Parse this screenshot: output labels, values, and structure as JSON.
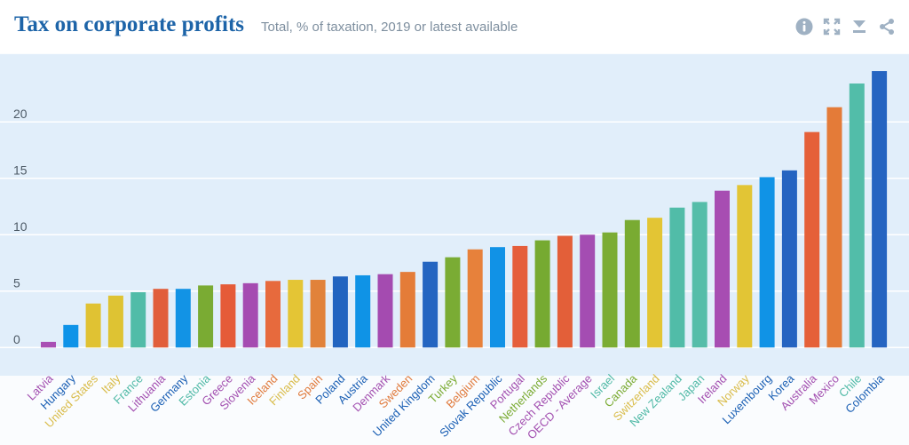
{
  "header": {
    "title": "Tax on corporate profits",
    "subtitle": "Total, % of taxation, 2019 or latest available"
  },
  "toolbar": {
    "icons": [
      "info-icon",
      "expand-icon",
      "download-icon",
      "share-icon"
    ]
  },
  "colors": {
    "plot_bg": "#e1eefa",
    "tool_icon": "#9fb1c3",
    "palette": [
      "#a94fb4",
      "#0e93e8",
      "#e0c233",
      "#dec333",
      "#51bca8",
      "#e15e3b",
      "#1293e5",
      "#7aab33",
      "#e55b38",
      "#a54bb1",
      "#e76a3d",
      "#e4c535",
      "#e1823a",
      "#2164c0",
      "#0f93e6",
      "#a44bb0",
      "#e47c38",
      "#2465c1",
      "#7aac34",
      "#e7813b",
      "#1192e6",
      "#e55e3b",
      "#76aa31",
      "#e35f39",
      "#a44db2",
      "#7bac33",
      "#79ab32",
      "#e3c534",
      "#51bca8",
      "#55bda9",
      "#a74db2",
      "#e2c535",
      "#1093e6",
      "#2564c1",
      "#e56039",
      "#e47b38",
      "#52bda9",
      "#2564c1"
    ],
    "label_colors": [
      "#a24fb0",
      "#1a5fb4",
      "#d9bc4a",
      "#d9bc4a",
      "#4fb9a6",
      "#a24fb0",
      "#1a5fb4",
      "#4fb9a6",
      "#a24fb0",
      "#a24fb0",
      "#e07a3c",
      "#d9bc4a",
      "#e07a3c",
      "#1a5fb4",
      "#1a5fb4",
      "#a24fb0",
      "#e07a3c",
      "#1a5fb4",
      "#7aab33",
      "#e07a3c",
      "#1a5fb4",
      "#a24fb0",
      "#7aab33",
      "#a24fb0",
      "#a24fb0",
      "#4fb9a6",
      "#7aab33",
      "#d9bc4a",
      "#4fb9a6",
      "#4fb9a6",
      "#a24fb0",
      "#d9bc4a",
      "#1a5fb4",
      "#1a5fb4",
      "#a24fb0",
      "#a24fb0",
      "#4fb9a6",
      "#1a5fb4"
    ]
  },
  "chart_data": {
    "type": "bar",
    "title": "Tax on corporate profits",
    "subtitle": "Total, % of taxation, 2019 or latest available",
    "xlabel": "",
    "ylabel": "",
    "ylim": [
      -2.5,
      26
    ],
    "yticks": [
      0,
      5,
      10,
      15,
      20
    ],
    "grid": true,
    "legend": "none",
    "categories": [
      "Latvia",
      "Hungary",
      "United States",
      "Italy",
      "France",
      "Lithuania",
      "Germany",
      "Estonia",
      "Greece",
      "Slovenia",
      "Iceland",
      "Finland",
      "Spain",
      "Poland",
      "Austria",
      "Denmark",
      "Sweden",
      "United Kingdom",
      "Turkey",
      "Belgium",
      "Slovak Republic",
      "Portugal",
      "Netherlands",
      "Czech Republic",
      "OECD - Average",
      "Israel",
      "Canada",
      "Switzerland",
      "New Zealand",
      "Japan",
      "Ireland",
      "Norway",
      "Luxembourg",
      "Korea",
      "Australia",
      "Mexico",
      "Chile",
      "Colombia"
    ],
    "values": [
      0.5,
      2.0,
      3.9,
      4.6,
      4.9,
      5.2,
      5.2,
      5.5,
      5.6,
      5.7,
      5.9,
      6.0,
      6.0,
      6.3,
      6.4,
      6.5,
      6.7,
      7.6,
      8.0,
      8.7,
      8.9,
      9.0,
      9.5,
      9.9,
      10.0,
      10.2,
      11.3,
      11.5,
      12.4,
      12.9,
      13.9,
      14.4,
      15.1,
      15.7,
      19.1,
      21.3,
      23.4,
      24.5
    ]
  }
}
